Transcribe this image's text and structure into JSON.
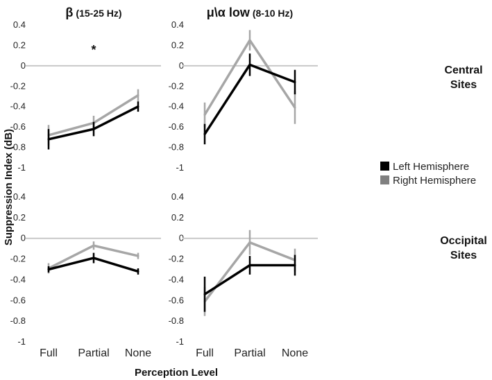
{
  "chart_data": {
    "type": "line",
    "ylabel": "Suppression Index (dB)",
    "xlabel": "Perception Level",
    "categories": [
      "Full",
      "Partial",
      "None"
    ],
    "yticks": [
      "0.4",
      "0.2",
      "0",
      "-0.2",
      "-0.4",
      "-0.6",
      "-0.8",
      "-1"
    ],
    "ylim": [
      -1,
      0.4
    ],
    "legend": {
      "placement": "right",
      "entries": [
        "Left Hemisphere",
        "Right Hemisphere"
      ]
    },
    "colors": {
      "left": "#000000",
      "right": "#a6a6a6",
      "zero_line": "#c8c8c8"
    },
    "column_titles": [
      {
        "main": "β",
        "sub": "(15-25 Hz)"
      },
      {
        "main": "μ\\α low",
        "sub": "(8-10 Hz)"
      }
    ],
    "row_labels": [
      {
        "line1": "Central",
        "line2": "Sites"
      },
      {
        "line1": "Occipital",
        "line2": "Sites"
      }
    ],
    "annotation": "*",
    "panels": [
      {
        "row": 0,
        "col": 0,
        "series": [
          {
            "name": "Left Hemisphere",
            "values": [
              -0.72,
              -0.62,
              -0.4
            ],
            "errors": [
              0.1,
              0.07,
              0.05
            ]
          },
          {
            "name": "Right Hemisphere",
            "values": [
              -0.68,
              -0.56,
              -0.29
            ],
            "errors": [
              0.1,
              0.07,
              0.06
            ]
          }
        ]
      },
      {
        "row": 0,
        "col": 1,
        "series": [
          {
            "name": "Left Hemisphere",
            "values": [
              -0.67,
              0.01,
              -0.16
            ],
            "errors": [
              0.1,
              0.11,
              0.12
            ]
          },
          {
            "name": "Right Hemisphere",
            "values": [
              -0.48,
              0.25,
              -0.41
            ],
            "errors": [
              0.12,
              0.1,
              0.16
            ]
          }
        ]
      },
      {
        "row": 1,
        "col": 0,
        "series": [
          {
            "name": "Left Hemisphere",
            "values": [
              -0.3,
              -0.19,
              -0.32
            ],
            "errors": [
              0.03,
              0.05,
              0.03
            ]
          },
          {
            "name": "Right Hemisphere",
            "values": [
              -0.29,
              -0.07,
              -0.17
            ],
            "errors": [
              0.05,
              0.04,
              0.03
            ]
          }
        ]
      },
      {
        "row": 1,
        "col": 1,
        "series": [
          {
            "name": "Left Hemisphere",
            "values": [
              -0.54,
              -0.26,
              -0.26
            ],
            "errors": [
              0.17,
              0.09,
              0.1
            ]
          },
          {
            "name": "Right Hemisphere",
            "values": [
              -0.61,
              -0.04,
              -0.21
            ],
            "errors": [
              0.14,
              0.12,
              0.11
            ]
          }
        ]
      }
    ]
  }
}
